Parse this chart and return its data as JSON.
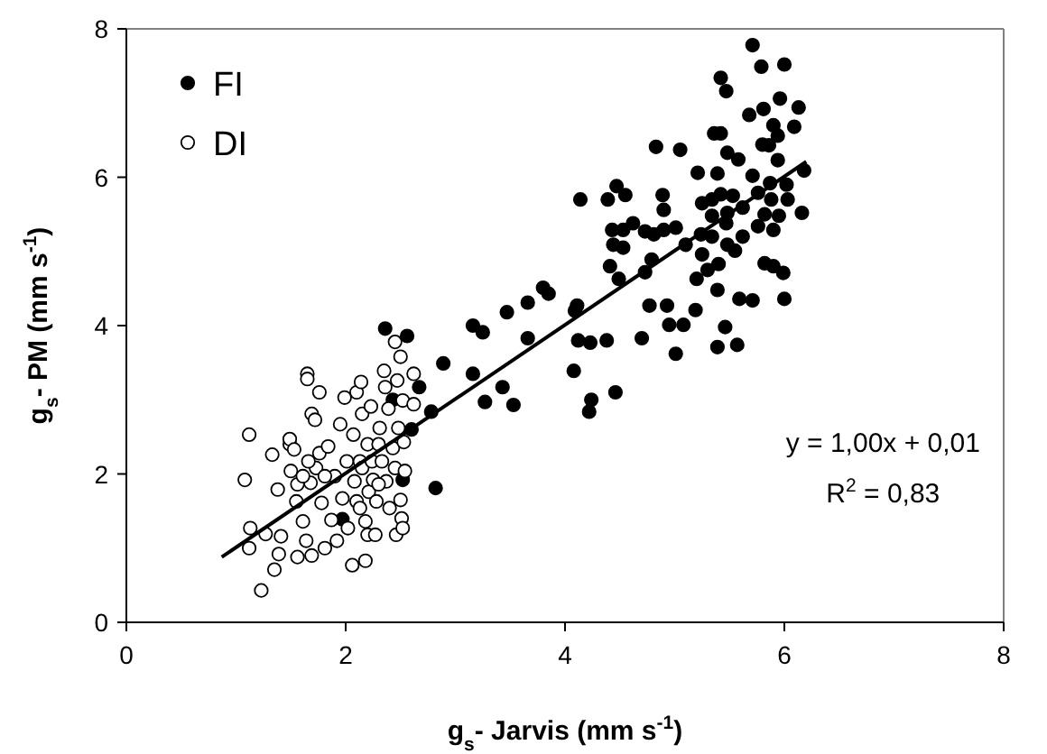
{
  "chart_data": {
    "type": "scatter",
    "xlabel": "g$_{s}$- Jarvis (mm s$^{-1}$)",
    "ylabel": "g$_{s}$- PM (mm s$^{-1}$)",
    "xlim": [
      0,
      8
    ],
    "ylim": [
      0,
      8
    ],
    "xticks": [
      0,
      2,
      4,
      6,
      8
    ],
    "yticks": [
      0,
      2,
      4,
      6,
      8
    ],
    "legend": "top left",
    "marker": "circle",
    "annotations": [
      "y = 1,00x + 0,01",
      "R$^{2}$ = 0,83"
    ],
    "series": [
      {
        "name": "FI",
        "color": "#000000",
        "x": [
          5.71,
          5.79,
          6.0,
          5.42,
          5.47,
          5.96,
          6.13,
          5.81,
          5.68,
          5.9,
          6.09,
          5.94,
          5.36,
          5.42,
          4.83,
          5.05,
          5.8,
          5.86,
          5.48,
          5.58,
          5.94,
          5.21,
          5.39,
          6.18,
          5.71,
          6.02,
          5.87,
          4.14,
          4.39,
          4.47,
          4.55,
          4.89,
          5.25,
          5.34,
          5.42,
          5.53,
          5.76,
          5.88,
          6.03,
          4.9,
          5.34,
          5.48,
          5.62,
          5.82,
          6.16,
          5.95,
          4.62,
          4.81,
          4.43,
          4.53,
          5.01,
          4.9,
          5.24,
          5.34,
          5.47,
          5.62,
          5.76,
          5.9,
          4.73,
          5.1,
          4.44,
          4.53,
          5.48,
          5.55,
          5.25,
          4.79,
          4.73,
          4.41,
          4.49,
          5.4,
          5.3,
          5.82,
          5.9,
          5.99,
          5.2,
          5.39,
          5.59,
          5.71,
          6.0,
          4.77,
          4.93,
          5.19,
          4.95,
          5.08,
          5.46,
          4.7,
          4.38,
          4.12,
          4.23,
          5.39,
          5.57,
          5.01,
          4.09,
          4.11,
          4.08,
          4.24,
          4.22,
          4.46,
          3.85,
          3.8,
          3.66,
          3.47,
          3.16,
          3.25,
          3.66,
          2.89,
          3.16,
          3.43,
          3.27,
          3.53,
          2.78,
          2.67,
          2.36,
          2.56,
          2.43,
          2.6,
          2.52,
          2.82,
          1.97
        ],
        "values": [
          7.78,
          7.49,
          7.52,
          7.34,
          7.16,
          7.06,
          6.94,
          6.92,
          6.84,
          6.7,
          6.68,
          6.56,
          6.59,
          6.59,
          6.41,
          6.37,
          6.44,
          6.43,
          6.33,
          6.24,
          6.23,
          6.06,
          6.05,
          6.09,
          6.02,
          5.9,
          5.92,
          5.7,
          5.7,
          5.88,
          5.76,
          5.76,
          5.65,
          5.7,
          5.77,
          5.75,
          5.79,
          5.7,
          5.7,
          5.56,
          5.48,
          5.52,
          5.59,
          5.5,
          5.52,
          5.48,
          5.38,
          5.23,
          5.29,
          5.29,
          5.32,
          5.29,
          5.23,
          5.2,
          5.38,
          5.2,
          5.34,
          5.29,
          5.27,
          5.09,
          5.09,
          5.05,
          5.09,
          5.01,
          4.96,
          4.89,
          4.72,
          4.8,
          4.63,
          4.83,
          4.75,
          4.84,
          4.8,
          4.71,
          4.63,
          4.48,
          4.36,
          4.34,
          4.36,
          4.27,
          4.27,
          4.21,
          4.01,
          4.01,
          3.98,
          3.83,
          3.8,
          3.8,
          3.77,
          3.71,
          3.74,
          3.62,
          4.2,
          4.27,
          3.39,
          3.0,
          2.84,
          3.1,
          4.43,
          4.51,
          4.31,
          4.18,
          4.0,
          3.91,
          3.83,
          3.49,
          3.35,
          3.17,
          2.97,
          2.93,
          2.84,
          3.17,
          3.96,
          3.86,
          3.0,
          2.6,
          1.92,
          1.81,
          1.39
        ]
      },
      {
        "name": "DI",
        "color": "#ffffff",
        "x": [
          1.12,
          1.08,
          1.12,
          1.13,
          1.23,
          1.27,
          1.35,
          1.39,
          1.38,
          1.33,
          1.41,
          1.49,
          1.49,
          1.5,
          1.53,
          1.55,
          1.56,
          1.56,
          1.61,
          1.64,
          1.65,
          1.65,
          1.68,
          1.69,
          1.69,
          1.72,
          1.73,
          1.76,
          1.76,
          1.78,
          1.81,
          1.84,
          1.87,
          1.9,
          1.92,
          1.95,
          1.97,
          1.99,
          2.01,
          2.02,
          2.06,
          2.07,
          2.08,
          2.1,
          2.1,
          2.13,
          2.14,
          2.15,
          2.15,
          2.18,
          2.18,
          2.2,
          2.2,
          2.21,
          2.23,
          2.24,
          2.25,
          2.27,
          2.28,
          2.3,
          2.31,
          2.33,
          2.35,
          2.36,
          2.37,
          2.39,
          2.4,
          2.43,
          2.45,
          2.45,
          2.46,
          2.47,
          2.48,
          2.5,
          2.5,
          2.51,
          2.52,
          2.53,
          2.54,
          2.62,
          2.62,
          2.52,
          1.61,
          1.66,
          1.81,
          2.13,
          2.3
        ],
        "values": [
          2.53,
          1.92,
          1.0,
          1.27,
          0.43,
          1.19,
          0.71,
          0.92,
          1.79,
          2.26,
          1.16,
          2.4,
          2.47,
          2.04,
          2.33,
          1.63,
          1.86,
          0.88,
          1.36,
          1.1,
          3.35,
          3.28,
          1.88,
          0.9,
          2.81,
          2.73,
          2.08,
          3.1,
          2.28,
          1.61,
          1.0,
          2.37,
          1.38,
          1.97,
          1.1,
          2.67,
          1.67,
          3.03,
          2.17,
          1.27,
          0.77,
          2.53,
          1.9,
          3.1,
          1.63,
          2.17,
          3.24,
          2.81,
          2.08,
          0.83,
          1.36,
          2.4,
          1.18,
          1.76,
          2.91,
          2.17,
          1.92,
          1.18,
          1.63,
          2.4,
          2.62,
          2.17,
          3.39,
          3.17,
          1.9,
          2.88,
          1.54,
          2.35,
          3.78,
          2.08,
          1.18,
          3.26,
          2.62,
          3.58,
          1.65,
          1.4,
          2.99,
          2.43,
          2.04,
          3.35,
          2.94,
          1.27,
          1.97,
          2.17,
          1.97,
          1.54,
          1.86
        ]
      },
      {
        "type": "line",
        "marker": "none",
        "color": "#000000",
        "x": [
          0.87,
          6.2
        ],
        "values": [
          0.88,
          6.21
        ]
      }
    ]
  }
}
